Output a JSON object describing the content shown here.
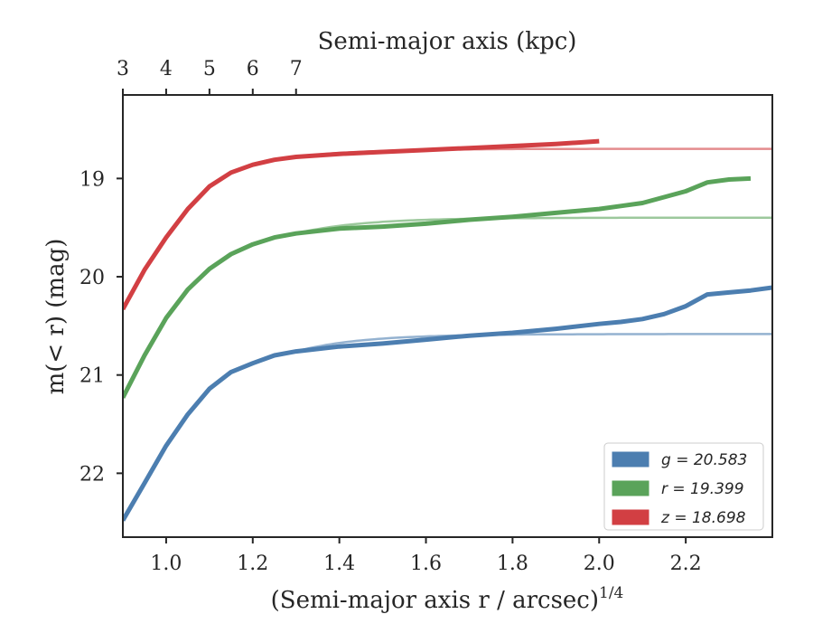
{
  "chart_data": {
    "type": "line",
    "xlabel": "(Semi-major axis r / arcsec)",
    "xlabel_sup": "1/4",
    "x2label": "Semi-major axis (kpc)",
    "ylabel": "m(< r) (mag)",
    "xlim": [
      0.9,
      2.4
    ],
    "ylim": [
      22.65,
      18.15
    ],
    "xticks": [
      1.0,
      1.2,
      1.4,
      1.6,
      1.8,
      2.0,
      2.2
    ],
    "xtick_labels": [
      "1.0",
      "1.2",
      "1.4",
      "1.6",
      "1.8",
      "2.0",
      "2.2"
    ],
    "x2ticks": [
      3,
      4,
      5,
      6,
      7
    ],
    "x2tick_labels": [
      "3",
      "4",
      "5",
      "6",
      "7"
    ],
    "yticks": [
      19,
      20,
      21,
      22
    ],
    "ytick_labels": [
      "19",
      "20",
      "21",
      "22"
    ],
    "legend_position": "lower-right",
    "series": [
      {
        "name": "g = 20.583",
        "band": "g",
        "value_label": "20.583",
        "color": "#4c7eb0",
        "asymptote": 20.583,
        "x": [
          0.9,
          0.95,
          1.0,
          1.05,
          1.1,
          1.15,
          1.2,
          1.25,
          1.3,
          1.4,
          1.5,
          1.6,
          1.7,
          1.8,
          1.9,
          2.0,
          2.05,
          2.1,
          2.15,
          2.2,
          2.25,
          2.3,
          2.35,
          2.4
        ],
        "y": [
          22.48,
          22.1,
          21.72,
          21.4,
          21.14,
          20.97,
          20.88,
          20.8,
          20.76,
          20.71,
          20.68,
          20.64,
          20.6,
          20.57,
          20.53,
          20.48,
          20.46,
          20.43,
          20.38,
          20.3,
          20.18,
          20.16,
          20.14,
          20.11
        ]
      },
      {
        "name": "r = 19.399",
        "band": "r",
        "value_label": "19.399",
        "color": "#5aa35a",
        "asymptote": 19.399,
        "x": [
          0.9,
          0.95,
          1.0,
          1.05,
          1.1,
          1.15,
          1.2,
          1.25,
          1.3,
          1.4,
          1.5,
          1.6,
          1.7,
          1.8,
          1.9,
          2.0,
          2.05,
          2.1,
          2.15,
          2.2,
          2.25,
          2.3,
          2.35
        ],
        "y": [
          21.23,
          20.8,
          20.42,
          20.13,
          19.92,
          19.77,
          19.67,
          19.6,
          19.56,
          19.51,
          19.49,
          19.46,
          19.42,
          19.39,
          19.35,
          19.31,
          19.28,
          19.25,
          19.19,
          19.13,
          19.04,
          19.01,
          19.0
        ]
      },
      {
        "name": "z = 18.698",
        "band": "z",
        "value_label": "18.698",
        "color": "#d23f43",
        "asymptote": 18.698,
        "x": [
          0.9,
          0.95,
          1.0,
          1.05,
          1.1,
          1.15,
          1.2,
          1.25,
          1.3,
          1.4,
          1.5,
          1.6,
          1.7,
          1.8,
          1.9,
          2.0
        ],
        "y": [
          20.33,
          19.93,
          19.6,
          19.31,
          19.08,
          18.94,
          18.86,
          18.81,
          18.78,
          18.75,
          18.73,
          18.71,
          18.69,
          18.67,
          18.65,
          18.62
        ]
      }
    ]
  }
}
